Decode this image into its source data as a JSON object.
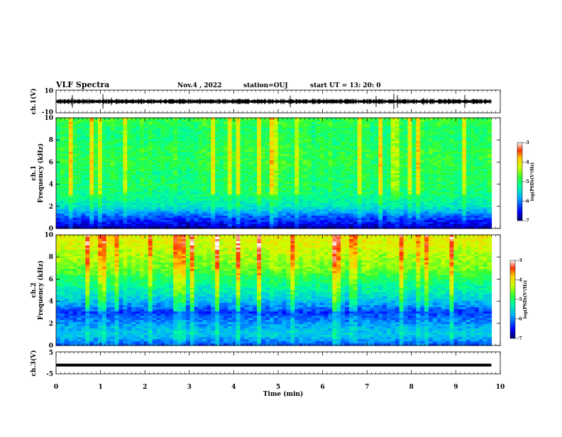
{
  "header": {
    "title": "VLF Spectra",
    "date": "Nov.4 , 2022",
    "station": "station=OUJ",
    "start": "start UT = 13: 20: 0"
  },
  "chart_data": [
    {
      "type": "line",
      "panel": "waveform",
      "ylabel": "ch.1(V)",
      "ylim": [
        -10,
        10
      ],
      "yticks": [
        "10",
        "-10"
      ],
      "xlim": [
        0,
        10
      ],
      "trace_level": 0,
      "trace_extent_min": 9.8,
      "trace_color": "#000000"
    },
    {
      "type": "heatmap",
      "panel": "spectrogram",
      "channel_label": "ch.1",
      "ylabel": "Frequency (kHz)",
      "ylim": [
        0,
        10
      ],
      "yticks": [
        "0",
        "2",
        "4",
        "6",
        "8",
        "10"
      ],
      "xlim": [
        0,
        10
      ],
      "data_extent_min": 9.8,
      "colorbar_label": "log(PSD)(V²/Hz)",
      "colorbar_range": [
        -7,
        -3
      ],
      "colorbar_ticks": [
        "-3",
        "-4",
        "-5",
        "-6",
        "-7"
      ],
      "band_levels_by_khz": [
        -6.8,
        -6.2,
        -5.4,
        -5.1,
        -5.0,
        -5.0,
        -4.9,
        -4.9,
        -5.0,
        -5.0,
        -4.8
      ]
    },
    {
      "type": "heatmap",
      "panel": "spectrogram",
      "channel_label": "ch.2",
      "ylabel": "Frequency (kHz)",
      "ylim": [
        0,
        10
      ],
      "yticks": [
        "0",
        "2",
        "4",
        "6",
        "8",
        "10"
      ],
      "xlim": [
        0,
        10
      ],
      "data_extent_min": 9.8,
      "colorbar_label": "log(PSD)(V²/Hz)",
      "colorbar_range": [
        -7,
        -3
      ],
      "colorbar_ticks": [
        "-3",
        "-4",
        "-5",
        "-6",
        "-7"
      ],
      "band_levels_by_khz": [
        -6.2,
        -5.6,
        -5.9,
        -6.3,
        -5.7,
        -5.3,
        -5.0,
        -4.6,
        -4.4,
        -4.2,
        -4.1
      ]
    },
    {
      "type": "line",
      "panel": "waveform",
      "ylabel": "ch.3(V)",
      "ylim": [
        -5,
        5
      ],
      "yticks": [
        "5",
        "-5"
      ],
      "xlim": [
        0,
        10
      ],
      "trace_level": -1.0,
      "trace_extent_min": 9.8,
      "trace_color": "#000000"
    }
  ],
  "xaxis": {
    "label": "Time (min)",
    "ticks": [
      "0",
      "1",
      "2",
      "3",
      "4",
      "5",
      "6",
      "7",
      "8",
      "9",
      "10"
    ]
  },
  "colors": {
    "colormap": [
      "#000066",
      "#0000ff",
      "#00b4ff",
      "#00ff99",
      "#33ff33",
      "#ccff00",
      "#ffcc00",
      "#ff3300",
      "#ffffff"
    ]
  }
}
